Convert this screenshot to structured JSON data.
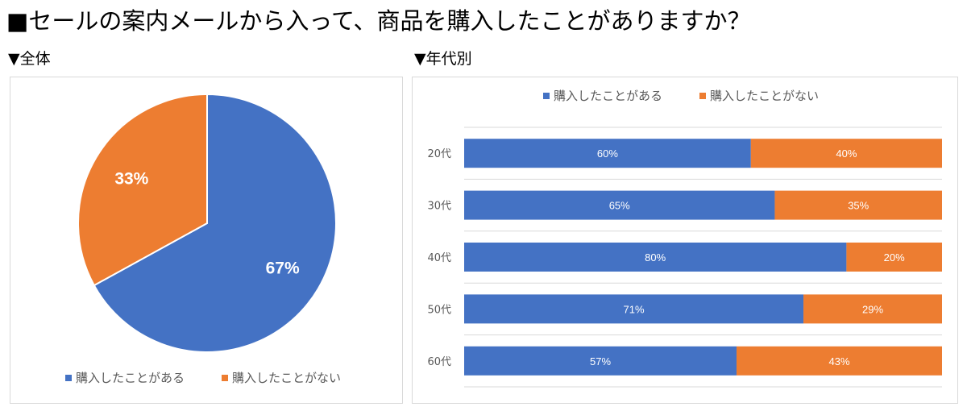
{
  "title": "■セールの案内メールから入って、商品を購入したことがありますか？",
  "sections": {
    "overall": "▼全体",
    "by_age": "▼年代別"
  },
  "colors": {
    "yes": "#4472C4",
    "no": "#ED7D31"
  },
  "chart_data": [
    {
      "type": "pie",
      "labels": [
        "購入したことがある",
        "購入したことがない"
      ],
      "values": [
        67,
        33
      ],
      "data_labels": [
        "67%",
        "33%"
      ],
      "legend_position": "bottom"
    },
    {
      "type": "bar",
      "orientation": "horizontal",
      "stacked": "100%",
      "categories": [
        "20代",
        "30代",
        "40代",
        "50代",
        "60代"
      ],
      "series": [
        {
          "name": "購入したことがある",
          "values": [
            60,
            65,
            80,
            71,
            57
          ],
          "data_labels": [
            "60%",
            "65%",
            "80%",
            "71%",
            "57%"
          ]
        },
        {
          "name": "購入したことがない",
          "values": [
            40,
            35,
            20,
            29,
            43
          ],
          "data_labels": [
            "40%",
            "35%",
            "20%",
            "29%",
            "43%"
          ]
        }
      ],
      "xlim": [
        0,
        100
      ],
      "grid": true,
      "legend_position": "top"
    }
  ]
}
